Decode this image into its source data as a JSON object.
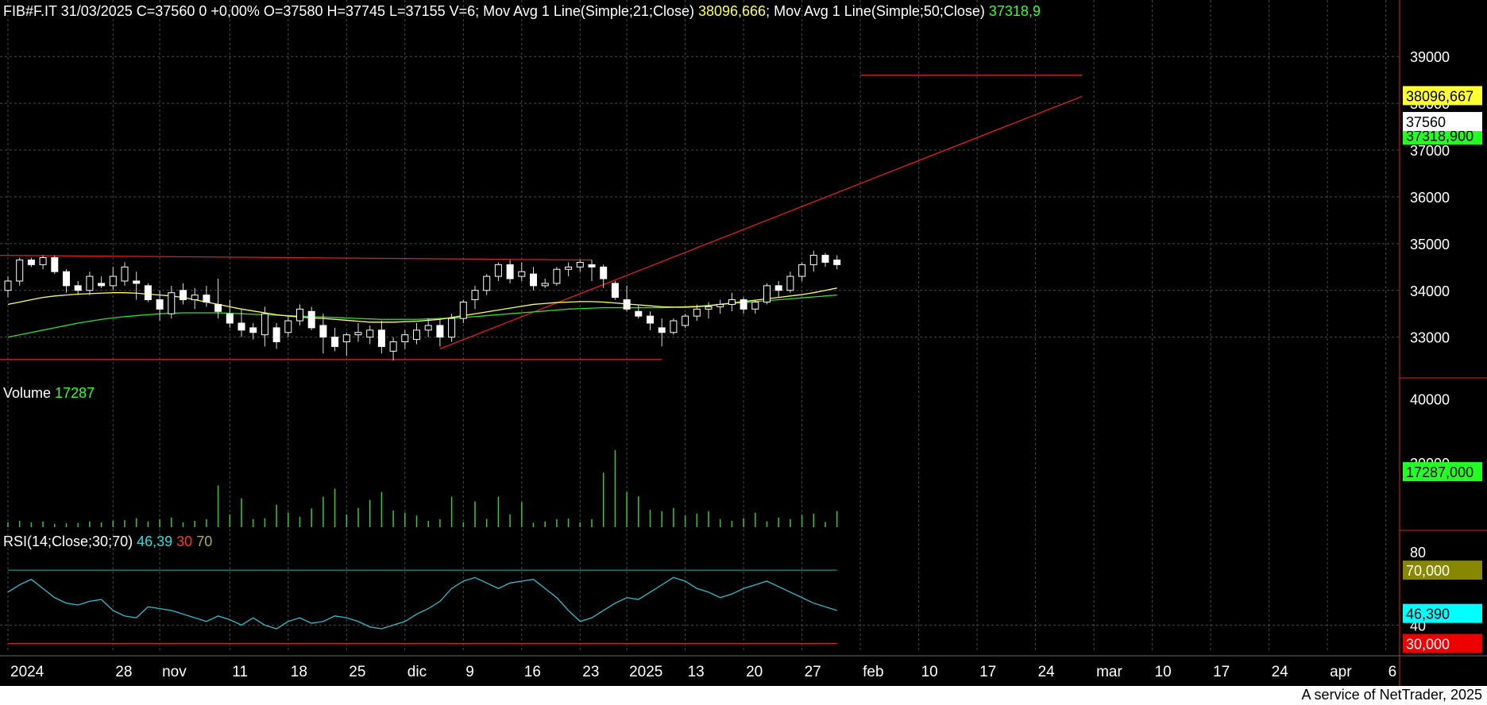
{
  "colors": {
    "background": "#000000",
    "grid": "#4a4a4a",
    "candle_up": "#ffffff",
    "candle_down": "#ffffff",
    "ma21": "#ffff66",
    "ma50": "#33dd33",
    "trend_line": "#dd2222",
    "volume": "#33cc33",
    "rsi": "#33bbcc",
    "rsi_level_70": "#aaaa55",
    "rsi_level_30": "#dd2222"
  },
  "header": {
    "symbol_info": "FIB#F.IT 31/03/2025 C=37560 0 +0,00% O=37580 H=37745 L=37155 V=6;",
    "ma21_label": " Mov Avg 1 Line(Simple;21;Close) ",
    "ma21_value": "38096,666",
    "sep": ";",
    "ma50_label": " Mov Avg 1 Line(Simple;50;Close) ",
    "ma50_value": "37318,9"
  },
  "volume_header": {
    "label": "Volume ",
    "value": "17287"
  },
  "rsi_header": {
    "label": "RSI(14;Close;30;70) ",
    "value": "46,39",
    "low": "30",
    "high": "70"
  },
  "footer": {
    "text": "A service of NetTrader, 2025"
  },
  "chart_data": [
    {
      "type": "candlestick",
      "title": "FIB#F.IT",
      "ylim": [
        32400,
        39700
      ],
      "y_ticks": [
        "39000",
        "38000",
        "37000",
        "36000",
        "35000",
        "34000",
        "33000"
      ],
      "y_tick_values": [
        39000,
        38000,
        37000,
        36000,
        35000,
        34000,
        33000
      ],
      "x_tick_labels": [
        "2024",
        "28",
        "nov",
        "11",
        "18",
        "25",
        "dic",
        "9",
        "16",
        "23",
        "2025",
        "13",
        "20",
        "27",
        "feb",
        "10",
        "17",
        "24",
        "mar",
        "10",
        "17",
        "24",
        "apr",
        "6"
      ],
      "x_tick_index": [
        0,
        9,
        13,
        19,
        24,
        29,
        34,
        39,
        44,
        49,
        53,
        58,
        63,
        68,
        73,
        78,
        83,
        88,
        93,
        98,
        103,
        108,
        113,
        118
      ],
      "value_labels": {
        "ma21": "38096,667",
        "last": "37560",
        "ma50": "37318,900"
      },
      "ohlc": [
        [
          34000,
          34300,
          33850,
          34200
        ],
        [
          34200,
          34700,
          34100,
          34650
        ],
        [
          34650,
          34700,
          34500,
          34550
        ],
        [
          34550,
          34750,
          34450,
          34700
        ],
        [
          34700,
          34750,
          34350,
          34400
        ],
        [
          34400,
          34450,
          33950,
          34100
        ],
        [
          34100,
          34200,
          33900,
          34000
        ],
        [
          34000,
          34400,
          33900,
          34300
        ],
        [
          34150,
          34300,
          34050,
          34100
        ],
        [
          34100,
          34500,
          34000,
          34300
        ],
        [
          34200,
          34600,
          34100,
          34500
        ],
        [
          34200,
          34400,
          33800,
          34150
        ],
        [
          34100,
          34150,
          33750,
          33800
        ],
        [
          33800,
          34000,
          33350,
          33600
        ],
        [
          33500,
          34100,
          33400,
          33950
        ],
        [
          34000,
          34150,
          33700,
          33800
        ],
        [
          33800,
          34050,
          33600,
          33900
        ],
        [
          33900,
          34100,
          33650,
          33750
        ],
        [
          33700,
          34250,
          33400,
          33550
        ],
        [
          33500,
          33800,
          33200,
          33300
        ],
        [
          33300,
          33600,
          33000,
          33150
        ],
        [
          33200,
          33300,
          32950,
          33100
        ],
        [
          33050,
          33650,
          32800,
          33500
        ],
        [
          33200,
          33300,
          32750,
          32900
        ],
        [
          33100,
          33450,
          33000,
          33350
        ],
        [
          33350,
          33700,
          33250,
          33600
        ],
        [
          33550,
          33650,
          33150,
          33200
        ],
        [
          33250,
          33500,
          32650,
          33000
        ],
        [
          33000,
          33200,
          32700,
          32800
        ],
        [
          32900,
          33100,
          32600,
          33050
        ],
        [
          33050,
          33300,
          32900,
          33100
        ],
        [
          33000,
          33250,
          32850,
          33150
        ],
        [
          33150,
          33350,
          32650,
          32800
        ],
        [
          32700,
          33000,
          32500,
          32900
        ],
        [
          32900,
          33150,
          32750,
          33050
        ],
        [
          32950,
          33300,
          32850,
          33150
        ],
        [
          33150,
          33400,
          33000,
          33250
        ],
        [
          33250,
          33400,
          32800,
          33000
        ],
        [
          33000,
          33500,
          32900,
          33400
        ],
        [
          33400,
          33800,
          33300,
          33750
        ],
        [
          33800,
          34100,
          33600,
          34000
        ],
        [
          34000,
          34350,
          33900,
          34300
        ],
        [
          34300,
          34600,
          34200,
          34550
        ],
        [
          34550,
          34650,
          34150,
          34250
        ],
        [
          34300,
          34600,
          34200,
          34400
        ],
        [
          34350,
          34500,
          34000,
          34100
        ],
        [
          34100,
          34250,
          34050,
          34150
        ],
        [
          34150,
          34500,
          34100,
          34450
        ],
        [
          34450,
          34600,
          34300,
          34500
        ],
        [
          34500,
          34650,
          34400,
          34600
        ],
        [
          34550,
          34650,
          34200,
          34500
        ],
        [
          34500,
          34550,
          34050,
          34250
        ],
        [
          34150,
          34200,
          33800,
          33850
        ],
        [
          33800,
          34100,
          33550,
          33600
        ],
        [
          33550,
          33700,
          33400,
          33450
        ],
        [
          33450,
          33550,
          33150,
          33300
        ],
        [
          33200,
          33400,
          32800,
          33100
        ],
        [
          33100,
          33400,
          33050,
          33350
        ],
        [
          33250,
          33500,
          33200,
          33450
        ],
        [
          33450,
          33700,
          33350,
          33600
        ],
        [
          33600,
          33750,
          33400,
          33650
        ],
        [
          33650,
          33800,
          33500,
          33700
        ],
        [
          33700,
          33950,
          33550,
          33800
        ],
        [
          33800,
          33850,
          33500,
          33600
        ],
        [
          33600,
          33800,
          33500,
          33750
        ],
        [
          33750,
          34150,
          33700,
          34100
        ],
        [
          34100,
          34200,
          33850,
          34000
        ],
        [
          34000,
          34400,
          33950,
          34300
        ],
        [
          34300,
          34600,
          34200,
          34550
        ],
        [
          34550,
          34850,
          34400,
          34750
        ],
        [
          34750,
          34800,
          34500,
          34600
        ],
        [
          34650,
          34750,
          34450,
          34550
        ]
      ],
      "ma21": [
        33700,
        33750,
        33800,
        33850,
        33880,
        33900,
        33920,
        33930,
        33940,
        33950,
        33950,
        33940,
        33920,
        33900,
        33880,
        33850,
        33800,
        33750,
        33700,
        33650,
        33600,
        33560,
        33520,
        33480,
        33450,
        33430,
        33410,
        33400,
        33380,
        33360,
        33340,
        33320,
        33320,
        33320,
        33330,
        33340,
        33360,
        33380,
        33420,
        33460,
        33500,
        33540,
        33580,
        33620,
        33660,
        33700,
        33720,
        33740,
        33750,
        33760,
        33760,
        33750,
        33730,
        33710,
        33690,
        33670,
        33650,
        33640,
        33640,
        33650,
        33670,
        33700,
        33730,
        33760,
        33790,
        33820,
        33850,
        33880,
        33910,
        33950,
        34000,
        34050
      ],
      "ma50": [
        33000,
        33050,
        33100,
        33150,
        33200,
        33250,
        33300,
        33340,
        33380,
        33410,
        33440,
        33460,
        33480,
        33500,
        33510,
        33520,
        33520,
        33520,
        33520,
        33510,
        33500,
        33490,
        33480,
        33470,
        33460,
        33450,
        33440,
        33430,
        33420,
        33410,
        33400,
        33390,
        33380,
        33380,
        33380,
        33380,
        33390,
        33400,
        33410,
        33420,
        33440,
        33460,
        33480,
        33500,
        33520,
        33540,
        33560,
        33580,
        33600,
        33610,
        33620,
        33630,
        33630,
        33630,
        33630,
        33630,
        33630,
        33640,
        33650,
        33660,
        33680,
        33700,
        33720,
        33740,
        33760,
        33780,
        33800,
        33820,
        33840,
        33860,
        33880,
        33900
      ],
      "volume": [
        1500,
        2000,
        1500,
        1800,
        1000,
        1200,
        1300,
        1800,
        1500,
        2000,
        2200,
        2800,
        1800,
        2500,
        3000,
        1500,
        2000,
        2500,
        13000,
        4000,
        9000,
        2500,
        2800,
        7000,
        4500,
        3200,
        5800,
        9500,
        12000,
        4000,
        6000,
        8500,
        11000,
        5200,
        4500,
        3600,
        2000,
        2500,
        9500,
        1500,
        8000,
        2600,
        9500,
        4000,
        7800,
        1400,
        1800,
        2500,
        2700,
        1500,
        2500,
        17000,
        24000,
        11000,
        9600,
        5400,
        5000,
        6000,
        3600,
        4200,
        5000,
        2500,
        2000,
        2800,
        4500,
        1800,
        3000,
        2500,
        3800,
        4200,
        1600,
        5000
      ],
      "volume_ticks": [
        "40000",
        "20000"
      ],
      "volume_tick_values": [
        40000,
        20000
      ],
      "volume_last_label": "17287,000",
      "rsi": [
        58,
        62,
        65,
        60,
        55,
        52,
        51,
        53,
        54,
        48,
        45,
        44,
        50,
        49,
        48,
        46,
        44,
        42,
        45,
        43,
        40,
        44,
        40,
        38,
        42,
        44,
        41,
        42,
        45,
        44,
        42,
        39,
        38,
        40,
        42,
        46,
        49,
        53,
        60,
        64,
        66,
        63,
        60,
        63,
        64,
        65,
        60,
        55,
        48,
        42,
        44,
        48,
        52,
        55,
        54,
        58,
        62,
        66,
        64,
        60,
        58,
        55,
        57,
        60,
        62,
        64,
        61,
        58,
        55,
        52,
        50,
        48
      ],
      "rsi_levels": [
        70,
        30
      ],
      "rsi_ticks": [
        "80",
        "40"
      ],
      "rsi_tick_values": [
        80,
        40
      ],
      "rsi_value_labels": {
        "high": "70,000",
        "last": "46,390",
        "low": "30,000"
      }
    }
  ]
}
